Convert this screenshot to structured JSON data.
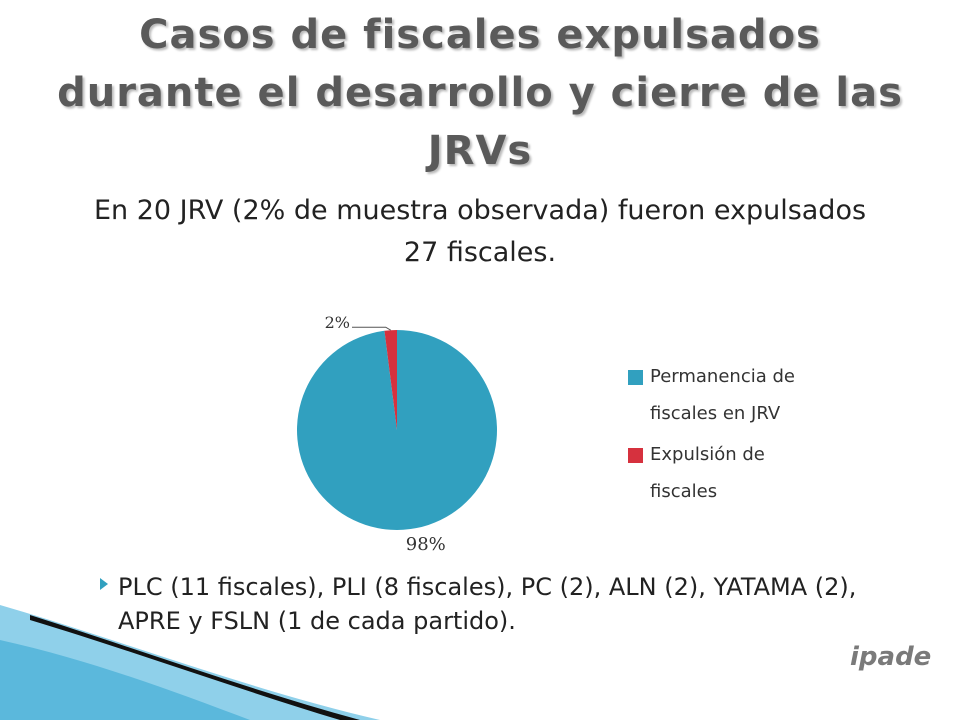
{
  "title": "Casos de fiscales expulsados durante el desarrollo y cierre de las JRVs",
  "subtitle": "En 20 JRV (2% de muestra observada) fueron expulsados 27 fiscales.",
  "bullet": "PLC (11 fiscales), PLI (8 fiscales), PC (2), ALN (2), YATAMA (2), APRE y FSLN (1 de cada partido).",
  "logo": "ipade",
  "chart_data": {
    "type": "pie",
    "categories": [
      "Permanencia de fiscales en JRV",
      "Expulsión de fiscales"
    ],
    "values": [
      98,
      2
    ],
    "value_labels": [
      "98%",
      "2%"
    ],
    "colors": [
      "#31a0bf",
      "#d6313e"
    ],
    "legend": "right"
  }
}
